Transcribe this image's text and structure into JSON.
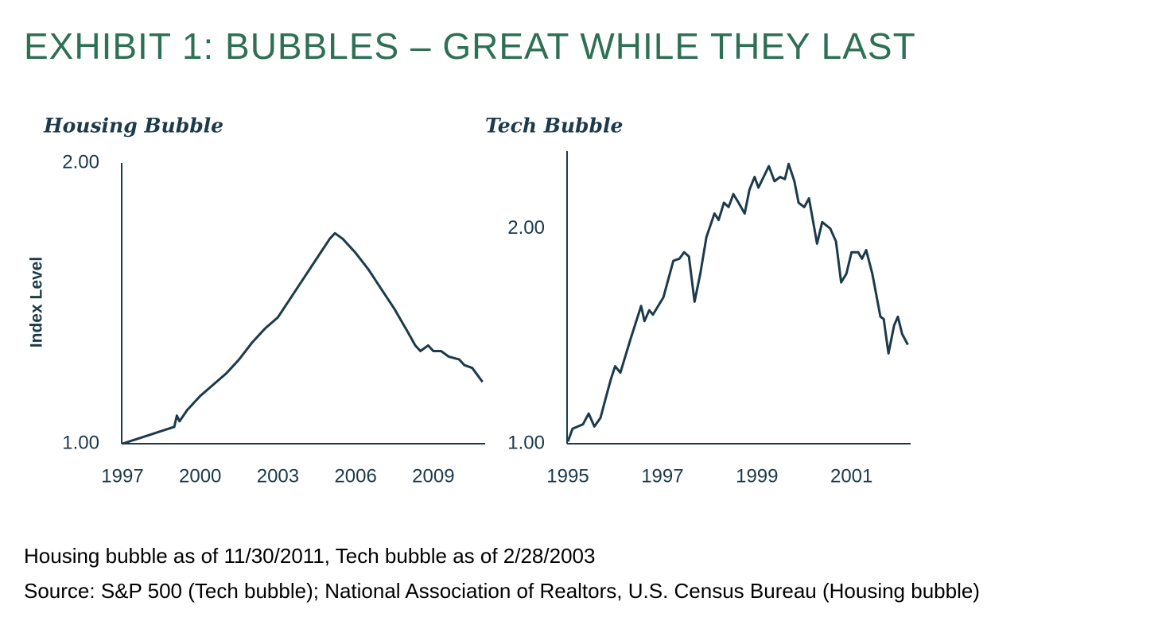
{
  "title": "EXHIBIT 1: BUBBLES – GREAT WHILE THEY LAST",
  "notes": [
    "Housing bubble as of 11/30/2011, Tech bubble as of 2/28/2003",
    "Source: S&P 500 (Tech bubble); National Association of Realtors, U.S. Census Bureau (Housing bubble)"
  ],
  "chart_data": [
    {
      "type": "line",
      "title": "Housing Bubble",
      "y_label": "Index Level",
      "color": "#1b3a4b",
      "x": [
        1997.0,
        1997.5,
        1998.0,
        1998.5,
        1999.0,
        1999.1,
        1999.2,
        1999.5,
        2000.0,
        2000.5,
        2001.0,
        2001.5,
        2002.0,
        2002.5,
        2003.0,
        2003.5,
        2004.0,
        2004.5,
        2005.0,
        2005.2,
        2005.5,
        2006.0,
        2006.5,
        2007.0,
        2007.5,
        2008.0,
        2008.3,
        2008.5,
        2008.8,
        2009.0,
        2009.3,
        2009.6,
        2010.0,
        2010.2,
        2010.5,
        2010.9
      ],
      "values": [
        1.0,
        1.015,
        1.03,
        1.045,
        1.06,
        1.1,
        1.08,
        1.12,
        1.17,
        1.21,
        1.25,
        1.3,
        1.36,
        1.41,
        1.45,
        1.52,
        1.59,
        1.66,
        1.73,
        1.75,
        1.73,
        1.68,
        1.62,
        1.55,
        1.48,
        1.4,
        1.35,
        1.33,
        1.35,
        1.33,
        1.33,
        1.31,
        1.3,
        1.28,
        1.27,
        1.22
      ],
      "xlim": [
        1997,
        2011
      ],
      "xticks": [
        1997,
        2000,
        2003,
        2006,
        2009
      ],
      "ylim": [
        1,
        2
      ],
      "yticks": [
        {
          "value": 1,
          "label": "1.00"
        },
        {
          "value": 2,
          "label": "2.00"
        }
      ]
    },
    {
      "type": "line",
      "title": "Tech Bubble",
      "color": "#1b3a4b",
      "x": [
        1995.0,
        1995.1,
        1995.32,
        1995.44,
        1995.56,
        1995.69,
        1995.81,
        1995.91,
        1996.0,
        1996.11,
        1996.33,
        1996.55,
        1996.62,
        1996.72,
        1996.8,
        1997.02,
        1997.23,
        1997.36,
        1997.46,
        1997.56,
        1997.68,
        1997.8,
        1997.93,
        1998.1,
        1998.19,
        1998.3,
        1998.4,
        1998.5,
        1998.61,
        1998.74,
        1998.84,
        1998.95,
        1999.03,
        1999.25,
        1999.37,
        1999.49,
        1999.59,
        1999.67,
        1999.79,
        1999.88,
        2000.0,
        2000.1,
        2000.27,
        2000.38,
        2000.55,
        2000.67,
        2000.78,
        2000.89,
        2001.0,
        2001.14,
        2001.22,
        2001.31,
        2001.44,
        2001.61,
        2001.68,
        2001.78,
        2001.9,
        2001.98,
        2002.07,
        2002.19
      ],
      "values": [
        1.01,
        1.07,
        1.09,
        1.14,
        1.08,
        1.12,
        1.22,
        1.3,
        1.36,
        1.33,
        1.49,
        1.64,
        1.57,
        1.62,
        1.6,
        1.68,
        1.85,
        1.86,
        1.89,
        1.87,
        1.66,
        1.79,
        1.96,
        2.07,
        2.04,
        2.12,
        2.1,
        2.16,
        2.12,
        2.07,
        2.18,
        2.24,
        2.19,
        2.29,
        2.22,
        2.24,
        2.23,
        2.3,
        2.22,
        2.12,
        2.1,
        2.14,
        1.93,
        2.03,
        2.0,
        1.94,
        1.75,
        1.79,
        1.89,
        1.89,
        1.86,
        1.9,
        1.79,
        1.59,
        1.58,
        1.42,
        1.55,
        1.59,
        1.51,
        1.46
      ],
      "xlim": [
        1995,
        2002.25
      ],
      "xticks": [
        1995,
        1997,
        1999,
        2001
      ],
      "ylim": [
        1,
        2.36
      ],
      "yticks": [
        {
          "value": 1,
          "label": "1.00"
        },
        {
          "value": 2,
          "label": "2.00"
        }
      ]
    }
  ]
}
